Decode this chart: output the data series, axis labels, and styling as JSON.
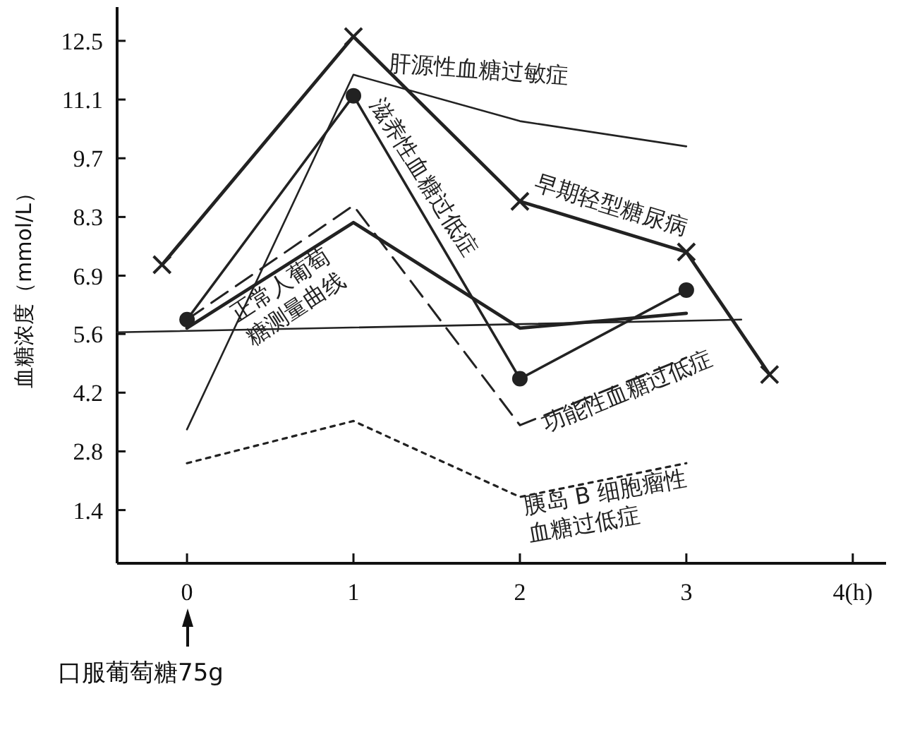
{
  "chart_data": {
    "type": "line",
    "ylabel": "血糖浓度（mmol/L）",
    "xlim": [
      -0.42,
      4.2
    ],
    "xticks": [
      0,
      1,
      2,
      3,
      {
        "value": 4,
        "label": "4(h)"
      }
    ],
    "ylim": [
      0.13,
      13.3
    ],
    "yticks": [
      {
        "value": 1.39,
        "label": "1.4"
      },
      {
        "value": 2.78,
        "label": "2.8"
      },
      {
        "value": 4.17,
        "label": "4.2"
      },
      {
        "value": 5.56,
        "label": "5.6"
      },
      {
        "value": 6.94,
        "label": "6.9"
      },
      {
        "value": 8.33,
        "label": "8.3"
      },
      {
        "value": 9.72,
        "label": "9.7"
      },
      {
        "value": 11.11,
        "label": "11.1"
      },
      12.5
    ],
    "series": [
      {
        "name": "肝源性血糖过敏症",
        "color": "#222222",
        "x": [
          0,
          1,
          2,
          3
        ],
        "values": [
          3.3,
          11.7,
          10.6,
          10.0
        ],
        "marker": "none",
        "line_style": "solid"
      },
      {
        "name": "滋养性血糖过低症",
        "color": "#222222",
        "x": [
          0,
          1,
          2,
          3
        ],
        "values": [
          5.9,
          11.2,
          4.5,
          6.6
        ],
        "marker": "circle",
        "line_style": "solid"
      },
      {
        "name": "早期轻型糖尿病",
        "color": "#222222",
        "x": [
          -0.15,
          1,
          2,
          3,
          3.5
        ],
        "values": [
          7.2,
          12.6,
          8.7,
          7.5,
          4.6
        ],
        "marker": "cross",
        "line_style": "solid"
      },
      {
        "name": "正常人葡萄糖测量曲线",
        "color": "#222222",
        "x": [
          0,
          1,
          2,
          3
        ],
        "values": [
          5.7,
          8.2,
          5.7,
          6.05
        ],
        "marker": "none",
        "line_style": "solid"
      },
      {
        "name": "功能性血糖过低症",
        "color": "#222222",
        "x": [
          0,
          1,
          2,
          3
        ],
        "values": [
          5.9,
          8.6,
          3.4,
          5.0
        ],
        "marker": "none",
        "line_style": "dashed"
      },
      {
        "name": "胰岛 B 细胞瘤性血糖过低症",
        "color": "#222222",
        "x": [
          0,
          1,
          2,
          3
        ],
        "values": [
          2.5,
          3.5,
          1.7,
          2.5
        ],
        "marker": "none",
        "line_style": "dotted"
      },
      {
        "color": "#222222",
        "x": [
          -0.42,
          3.33
        ],
        "values": [
          5.6,
          5.9
        ],
        "marker": "none",
        "line_style": "solid"
      }
    ],
    "annotations": [
      "口服葡萄糖75g"
    ]
  }
}
